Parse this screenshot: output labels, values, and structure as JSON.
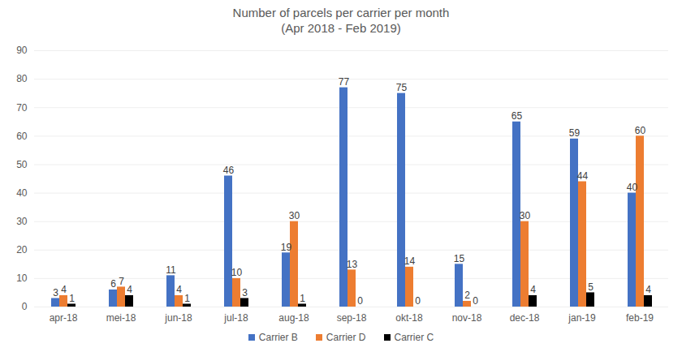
{
  "chart_data": {
    "type": "bar",
    "title": "Number of parcels per carrier per month",
    "subtitle": "(Apr 2018 - Feb 2019)",
    "categories": [
      "apr-18",
      "mei-18",
      "jun-18",
      "jul-18",
      "aug-18",
      "sep-18",
      "okt-18",
      "nov-18",
      "dec-18",
      "jan-19",
      "feb-19"
    ],
    "series": [
      {
        "name": "Carrier B",
        "color": "#4472c4",
        "values": [
          3,
          6,
          11,
          46,
          19,
          77,
          75,
          15,
          65,
          59,
          40
        ]
      },
      {
        "name": "Carrier D",
        "color": "#ed7d31",
        "values": [
          4,
          7,
          4,
          10,
          30,
          13,
          14,
          2,
          30,
          44,
          60
        ]
      },
      {
        "name": "Carrier C",
        "color": "#000000",
        "values": [
          1,
          4,
          1,
          3,
          1,
          0,
          0,
          0,
          4,
          5,
          4
        ]
      }
    ],
    "ylim": [
      0,
      90
    ],
    "yticks": [
      0,
      10,
      20,
      30,
      40,
      50,
      60,
      70,
      80,
      90
    ],
    "grid": true,
    "data_labels": true,
    "legend": "bottom"
  }
}
